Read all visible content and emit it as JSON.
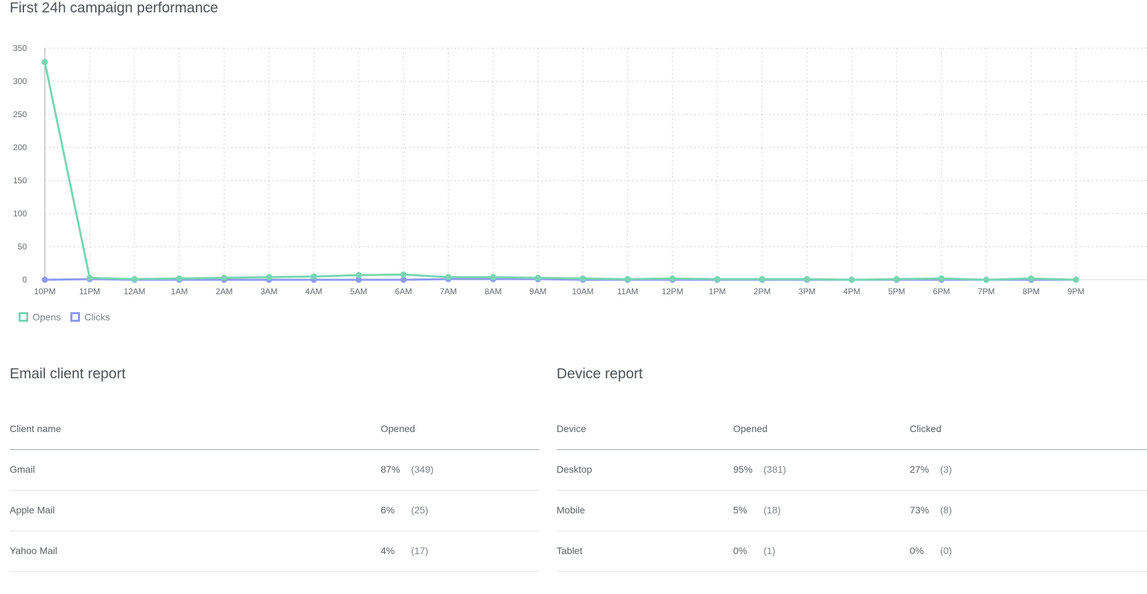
{
  "chart_section": {
    "title": "First 24h campaign performance"
  },
  "chart_data": {
    "type": "line",
    "title": "First 24h campaign performance",
    "categories": [
      "10PM",
      "11PM",
      "12AM",
      "1AM",
      "2AM",
      "3AM",
      "4AM",
      "5AM",
      "6AM",
      "7AM",
      "8AM",
      "9AM",
      "10AM",
      "11AM",
      "12PM",
      "1PM",
      "2PM",
      "3PM",
      "4PM",
      "5PM",
      "6PM",
      "7PM",
      "8PM",
      "9PM"
    ],
    "yticks": [
      "0",
      "50",
      "100",
      "150",
      "200",
      "250",
      "300",
      "350"
    ],
    "ylim": [
      0,
      350
    ],
    "grid": true,
    "legend_position": "bottom-left",
    "series": [
      {
        "name": "Opens",
        "color": "#78d6b2",
        "values": [
          329,
          3,
          1,
          2,
          3,
          4,
          5,
          7,
          8,
          4,
          4,
          3,
          2,
          1,
          2,
          1,
          1,
          1,
          0,
          1,
          2,
          0,
          2,
          0
        ]
      },
      {
        "name": "Clicks",
        "color": "#8c9bf0",
        "values": [
          0,
          1,
          0,
          0,
          0,
          0,
          0,
          0,
          0,
          1,
          1,
          1,
          0,
          0,
          0,
          0,
          0,
          0,
          0,
          0,
          0,
          0,
          0,
          0
        ]
      }
    ]
  },
  "email_report": {
    "title": "Email client report",
    "headers": {
      "client": "Client name",
      "opened": "Opened"
    },
    "rows": [
      {
        "client": "Gmail",
        "opened_pct": "87%",
        "opened_count": "(349)"
      },
      {
        "client": "Apple Mail",
        "opened_pct": "6%",
        "opened_count": "(25)"
      },
      {
        "client": "Yahoo Mail",
        "opened_pct": "4%",
        "opened_count": "(17)"
      }
    ]
  },
  "device_report": {
    "title": "Device report",
    "headers": {
      "device": "Device",
      "opened": "Opened",
      "clicked": "Clicked"
    },
    "rows": [
      {
        "device": "Desktop",
        "opened_pct": "95%",
        "opened_count": "(381)",
        "clicked_pct": "27%",
        "clicked_count": "(3)"
      },
      {
        "device": "Mobile",
        "opened_pct": "5%",
        "opened_count": "(18)",
        "clicked_pct": "73%",
        "clicked_count": "(8)"
      },
      {
        "device": "Tablet",
        "opened_pct": "0%",
        "opened_count": "(1)",
        "clicked_pct": "0%",
        "clicked_count": "(0)"
      }
    ]
  }
}
